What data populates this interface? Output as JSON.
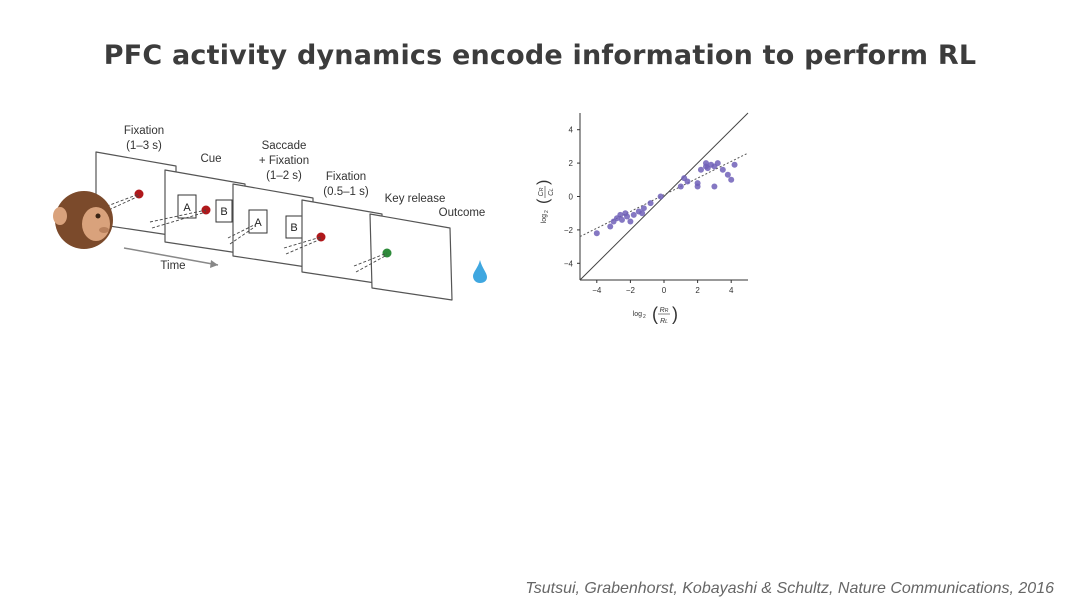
{
  "slide": {
    "title": "PFC activity dynamics encode information to perform RL",
    "citation": "Tsutsui, Grabenhorst, Kobayashi & Schultz, Nature Communications, 2016"
  },
  "task_diagram": {
    "labels": {
      "fixation1_a": "Fixation",
      "fixation1_b": "(1–3 s)",
      "cue": "Cue",
      "saccade_a": "Saccade",
      "saccade_b": "+ Fixation",
      "saccade_c": "(1–2 s)",
      "fixation2_a": "Fixation",
      "fixation2_b": "(0.5–1 s)",
      "key_release": "Key release",
      "outcome": "Outcome",
      "time": "Time"
    },
    "stimulus_labels": {
      "a1": "A",
      "b1": "B",
      "a2": "A",
      "b2": "B"
    },
    "colors": {
      "fixation_dot": "#b0181b",
      "go_dot": "#2e8b3a",
      "juice_drop": "#3fa7e0",
      "monkey_fur": "#7b4a2b"
    }
  },
  "chart_data": {
    "type": "scatter",
    "xlabel": "log2(RR/RL)",
    "ylabel": "log2(CR/CL)",
    "xlim": [
      -5,
      5
    ],
    "ylim": [
      -5,
      5
    ],
    "x_ticks": [
      "−4",
      "−2",
      "0",
      "2",
      "4"
    ],
    "y_ticks": [
      "4",
      "2",
      "0",
      "−2",
      "−4"
    ],
    "point_color": "#7060b8",
    "identity_line": true,
    "fit_line": {
      "from": [
        -5,
        -2.4
      ],
      "to": [
        5,
        2.6
      ],
      "style": "dotted"
    },
    "x": [
      -4.0,
      -3.2,
      -3.0,
      -2.8,
      -2.6,
      -2.5,
      -2.3,
      -2.2,
      -2.0,
      -1.8,
      -1.5,
      -1.3,
      -1.2,
      -0.8,
      -0.2,
      1.0,
      1.2,
      1.4,
      2.0,
      2.2,
      2.5,
      2.6,
      2.8,
      3.0,
      3.2,
      3.5,
      3.8,
      4.0,
      4.2,
      2.0,
      3.0,
      2.5
    ],
    "y": [
      -2.2,
      -1.8,
      -1.5,
      -1.3,
      -1.1,
      -1.4,
      -1.0,
      -1.2,
      -1.5,
      -1.1,
      -0.9,
      -1.0,
      -0.7,
      -0.4,
      0.0,
      0.6,
      1.1,
      0.9,
      0.8,
      1.6,
      2.0,
      1.7,
      1.9,
      1.8,
      2.0,
      1.6,
      1.3,
      1.0,
      1.9,
      0.6,
      0.6,
      1.8
    ]
  }
}
